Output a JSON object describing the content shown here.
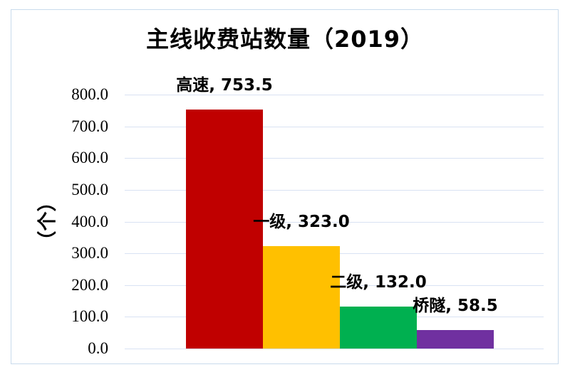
{
  "chart": {
    "title": "主线收费站数量（2019）",
    "y_axis_title": "（个）"
  },
  "chart_data": {
    "type": "bar",
    "title": "主线收费站数量（2019）",
    "categories": [
      "高速",
      "一级",
      "二级",
      "桥隧"
    ],
    "series": [
      {
        "id": "gaosu",
        "name": "高速",
        "value": 753.5,
        "label": "高速, 753.5",
        "color": "#C00000"
      },
      {
        "id": "yiji",
        "name": "一级",
        "value": 323.0,
        "label": "一级, 323.0",
        "color": "#FFC000"
      },
      {
        "id": "erji",
        "name": "二级",
        "value": 132.0,
        "label": "二级, 132.0",
        "color": "#00B050"
      },
      {
        "id": "qiaosui",
        "name": "桥隧",
        "value": 58.5,
        "label": "桥隧, 58.5",
        "color": "#7030A0"
      }
    ],
    "xlabel": "",
    "ylabel": "（个）",
    "ylim": [
      0,
      800
    ],
    "ytick_step": 100,
    "yticks": [
      800,
      700,
      600,
      500,
      400,
      300,
      200,
      100,
      0
    ],
    "ytick_format": "one_decimal",
    "grid": true,
    "legend": "none",
    "data_labels": "outside_end",
    "gridline_color": "#D9E2F3",
    "border_color": "#C9DBEC",
    "background_color": "#FFFFFF",
    "text_color": "#000000"
  }
}
